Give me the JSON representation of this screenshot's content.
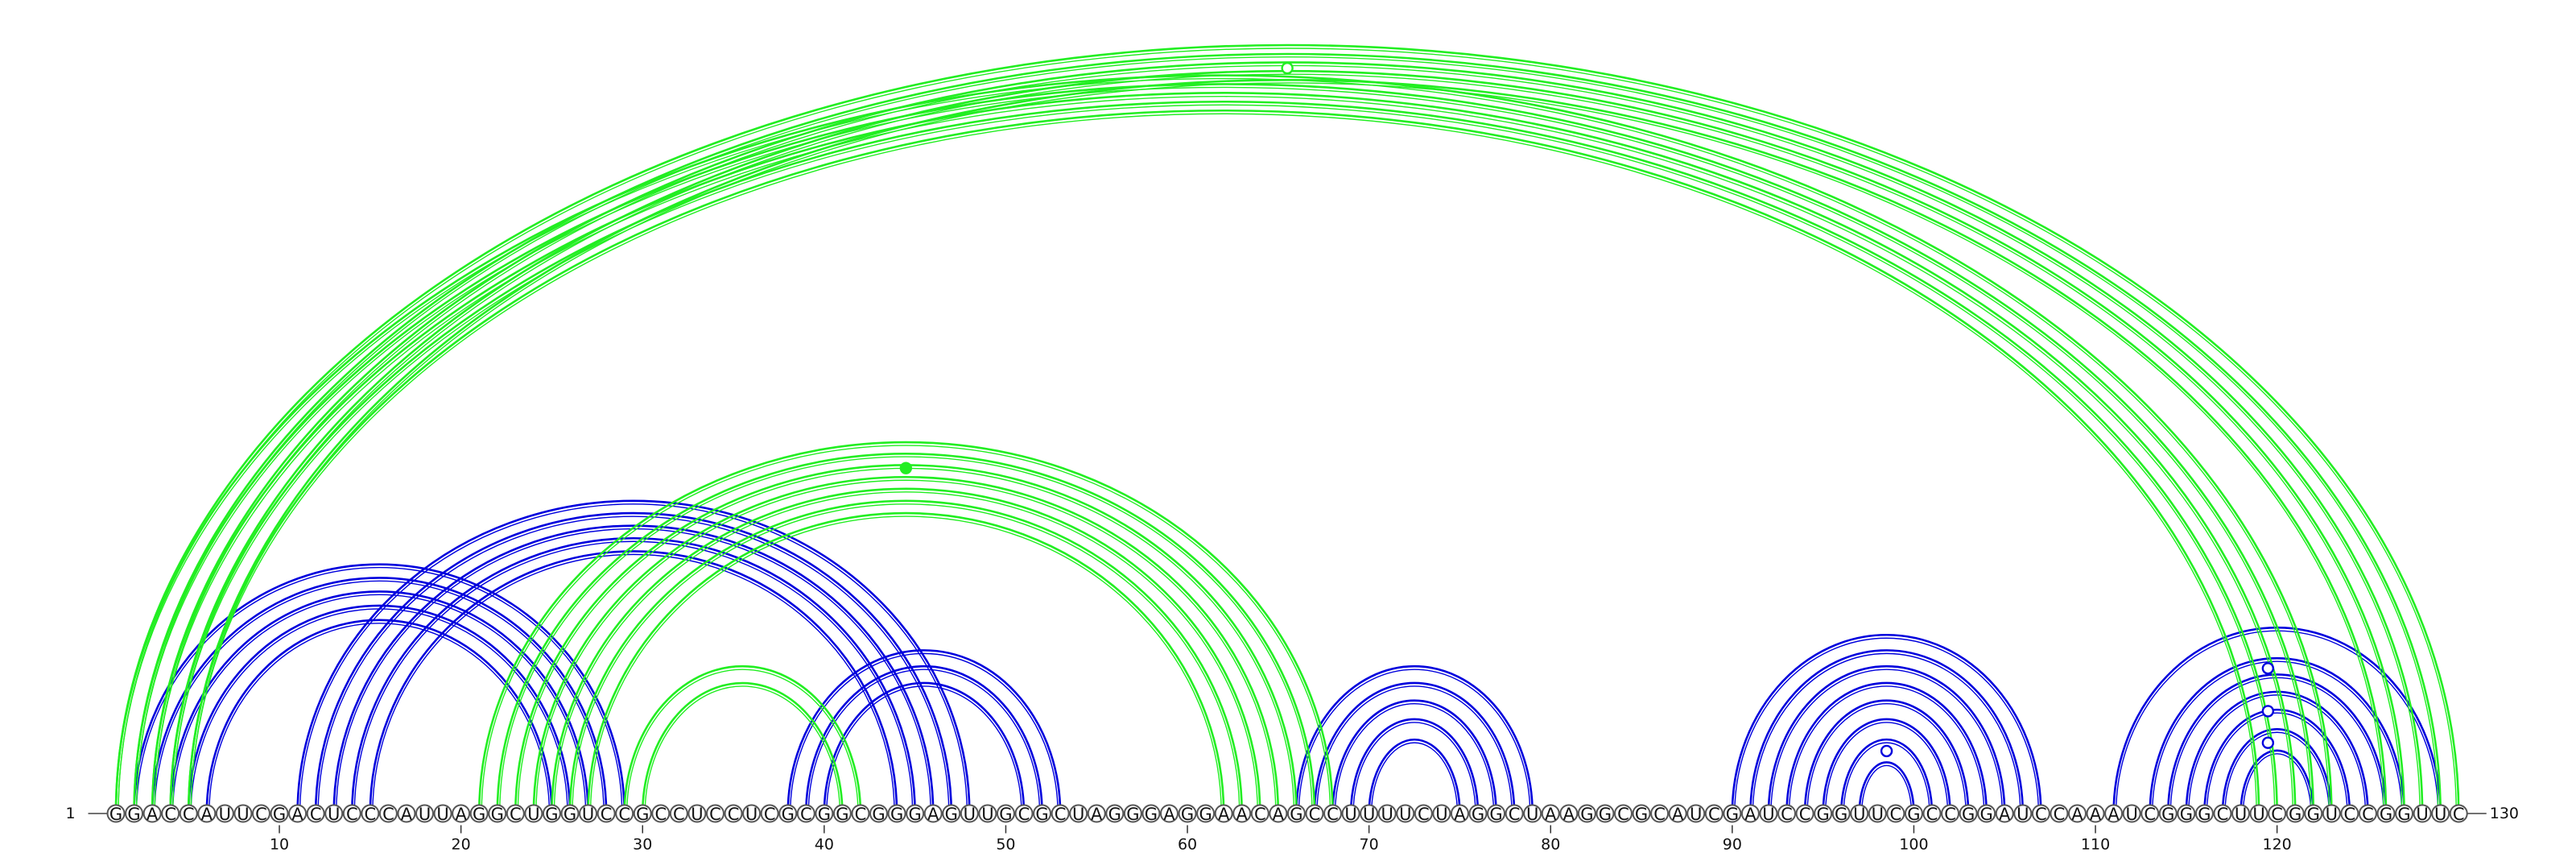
{
  "sequence": "GGACCAUUCGACUCCCAUUAGGCUGGUCCGCCUCCUCGCGGCGGGAGUUGCGCUAGGGAGGAACAGCCUUUUCUAGGCUAAGGCGCAUCGAUCCGGUUCGCCGGAUCCAAAUCGGGCUUCGGUCCGGUUC",
  "start_label": "1",
  "end_label": "130",
  "ticks": [
    10,
    20,
    30,
    40,
    50,
    60,
    70,
    80,
    90,
    100,
    110,
    120
  ],
  "colors": {
    "blue": "#0000dd",
    "green": "#22ee22"
  },
  "arc_groups": [
    {
      "color": "blue",
      "pairs": [
        [
          2,
          29
        ],
        [
          3,
          28
        ],
        [
          4,
          27
        ],
        [
          5,
          26
        ],
        [
          6,
          25
        ]
      ]
    },
    {
      "color": "blue",
      "pairs": [
        [
          11,
          48
        ],
        [
          12,
          47
        ],
        [
          13,
          46
        ],
        [
          14,
          45
        ],
        [
          15,
          44
        ]
      ]
    },
    {
      "color": "blue",
      "pairs": [
        [
          38,
          53
        ],
        [
          39,
          52
        ],
        [
          40,
          51
        ]
      ]
    },
    {
      "color": "blue",
      "pairs": [
        [
          66,
          79
        ],
        [
          67,
          78
        ],
        [
          68,
          77
        ],
        [
          69,
          76
        ],
        [
          70,
          75
        ]
      ]
    },
    {
      "color": "blue",
      "pairs": [
        [
          90,
          107
        ],
        [
          91,
          106
        ],
        [
          92,
          105
        ],
        [
          93,
          104
        ],
        [
          94,
          103
        ],
        [
          95,
          102
        ],
        [
          96,
          101
        ],
        [
          97,
          100
        ]
      ]
    },
    {
      "color": "blue",
      "pairs": [
        [
          111,
          129
        ],
        [
          113,
          127
        ],
        [
          114,
          126
        ],
        [
          115,
          125
        ],
        [
          116,
          124
        ],
        [
          117,
          123
        ],
        [
          118,
          122
        ]
      ]
    },
    {
      "color": "green",
      "pairs": [
        [
          1,
          123
        ],
        [
          2,
          122
        ],
        [
          3,
          121
        ],
        [
          4,
          120
        ],
        [
          5,
          119
        ],
        [
          1,
          130
        ],
        [
          2,
          129
        ],
        [
          3,
          128
        ],
        [
          4,
          127
        ],
        [
          5,
          126
        ]
      ]
    },
    {
      "color": "green",
      "pairs": [
        [
          21,
          68
        ],
        [
          22,
          67
        ],
        [
          23,
          66
        ],
        [
          24,
          65
        ],
        [
          25,
          64
        ],
        [
          26,
          63
        ],
        [
          27,
          62
        ]
      ]
    },
    {
      "color": "green",
      "pairs": [
        [
          29,
          42
        ],
        [
          30,
          41
        ]
      ]
    }
  ],
  "markers": [
    {
      "pos": 65.5,
      "level": 0.97,
      "color": "green",
      "filled": false
    },
    {
      "pos": 44.5,
      "level": 0.93,
      "color": "green",
      "filled": true
    },
    {
      "pos": 119.5,
      "level": 0.78,
      "color": "blue",
      "filled": false
    },
    {
      "pos": 119.5,
      "level": 0.55,
      "color": "blue",
      "filled": false
    },
    {
      "pos": 119.5,
      "level": 0.38,
      "color": "blue",
      "filled": false
    },
    {
      "pos": 98.5,
      "level": 0.35,
      "color": "blue",
      "filled": false
    }
  ]
}
